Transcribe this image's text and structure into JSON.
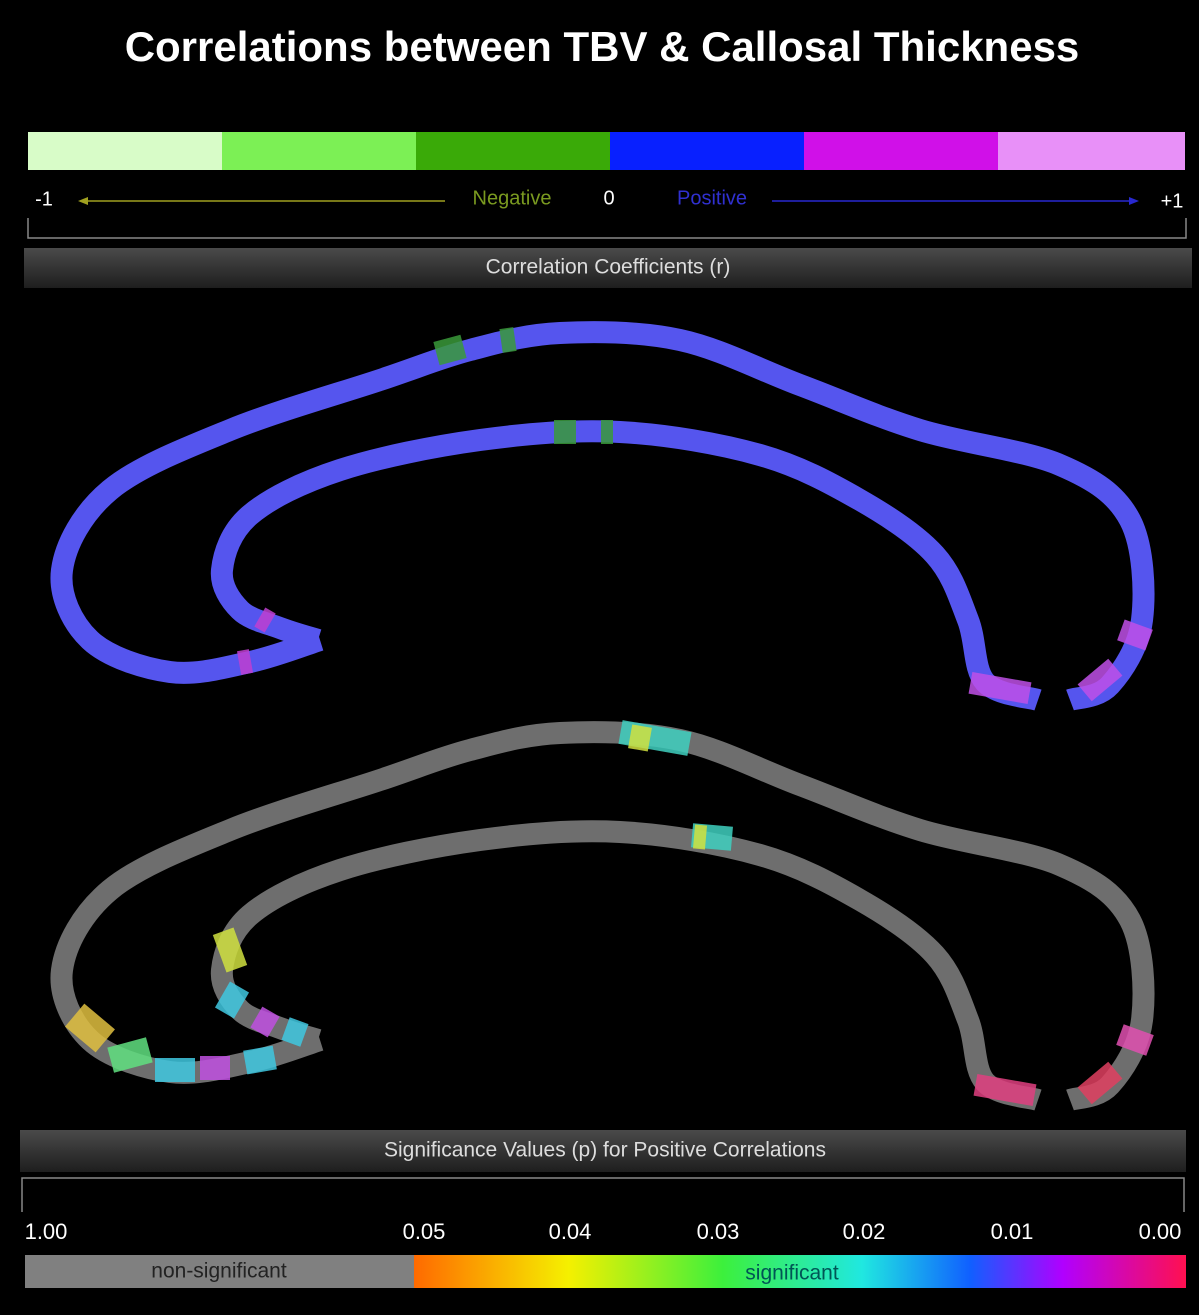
{
  "title": "Correlations between TBV & Callosal Thickness",
  "correlation_scale": {
    "min_label": "-1",
    "negative_label": "Negative",
    "zero_label": "0",
    "positive_label": "Positive",
    "max_label": "+1",
    "caption": "Correlation Coefficients (r)"
  },
  "significance_scale": {
    "caption": "Significance Values (p) for Positive Correlations",
    "ticks": [
      "1.00",
      "0.05",
      "0.04",
      "0.03",
      "0.02",
      "0.01",
      "0.00"
    ],
    "non_significant_label": "non-significant",
    "significant_label": "significant"
  }
}
